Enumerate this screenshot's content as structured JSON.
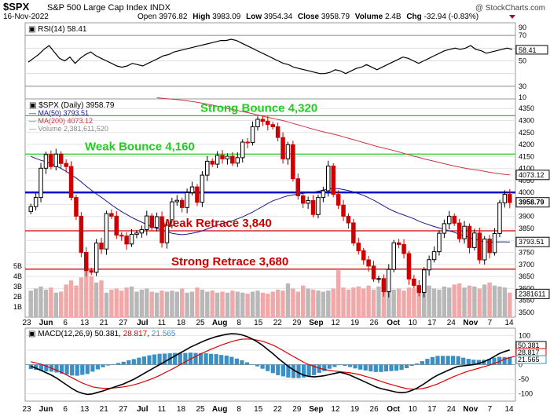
{
  "header": {
    "symbol": "$SPX",
    "name": "S&P 500 Large Cap Index",
    "exchange": "INDX",
    "watermark": "@ StockCharts.com",
    "date": "16-Nov-2022",
    "open_label": "Open",
    "open": "3976.82",
    "high_label": "High",
    "high": "3983.09",
    "low_label": "Low",
    "low": "3954.34",
    "close_label": "Close",
    "close": "3958.79",
    "volume_label": "Volume",
    "volume": "2.4B",
    "chg_label": "Chg",
    "chg": "-32.94 (-0.83%)"
  },
  "colors": {
    "up": "#000000",
    "down": "#cc0000",
    "ma50": "#1a1a8c",
    "ma200": "#cc3344",
    "support_blue": "#0000cc",
    "green_line": "#22cc22",
    "red_line": "#cc0000",
    "rsi": "#000000",
    "macd": "#000000",
    "signal": "#dd0000",
    "hist": "#3a8fc4"
  },
  "chart_data": [
    {
      "type": "line",
      "panel": "RSI",
      "label": "RSI(14)",
      "current": "58.41",
      "ylim": [
        20,
        80
      ],
      "ticks": [
        "90",
        "70",
        "50",
        "30",
        "10"
      ],
      "tick_values": [
        90,
        70,
        50,
        30,
        10
      ],
      "reference_levels": [
        70,
        30
      ],
      "values": [
        49,
        52,
        55,
        59,
        62,
        57,
        52,
        50,
        53,
        48,
        52,
        55,
        57,
        54,
        52,
        50,
        48,
        46,
        45,
        46,
        48,
        47,
        46,
        48,
        50,
        52,
        54,
        55,
        57,
        58,
        59,
        60,
        61,
        62,
        63,
        64,
        65,
        66,
        66,
        67,
        66,
        64,
        62,
        60,
        58,
        56,
        54,
        52,
        50,
        48,
        47,
        45,
        44,
        43,
        42,
        41,
        40,
        40,
        41,
        43,
        42,
        40,
        42,
        44,
        45,
        47,
        45,
        43,
        45,
        47,
        49,
        51,
        53,
        52,
        50,
        48,
        50,
        52,
        54,
        56,
        58,
        59,
        60,
        59,
        60,
        62,
        59,
        58,
        56,
        57,
        58,
        59,
        60,
        59
      ]
    },
    {
      "type": "candlestick",
      "panel": "Price",
      "series_labels": [
        {
          "name": "$SPX (Daily)",
          "value": "3958.79"
        },
        {
          "name": "MA(50)",
          "value": "3793.51"
        },
        {
          "name": "MA(200)",
          "value": "4073.12"
        },
        {
          "name": "Volume",
          "value": "2,381,611,520"
        }
      ],
      "x_labels": [
        "23",
        "Jun",
        "6",
        "13",
        "21",
        "27",
        "Jul",
        "11",
        "18",
        "25",
        "Aug",
        "8",
        "15",
        "22",
        "29",
        "Sep",
        "12",
        "19",
        "26",
        "Oct",
        "10",
        "17",
        "24",
        "Nov",
        "7",
        "14"
      ],
      "price_ticks": [
        "4350",
        "4300",
        "4250",
        "4200",
        "4150",
        "4100",
        "4050",
        "4000",
        "3950",
        "3900",
        "3850",
        "3800",
        "3750",
        "3700",
        "3650",
        "3600",
        "3550",
        "3500"
      ],
      "price_tick_values": [
        4350,
        4300,
        4250,
        4200,
        4150,
        4100,
        4050,
        4000,
        3950,
        3900,
        3850,
        3800,
        3750,
        3700,
        3650,
        3600,
        3550,
        3500
      ],
      "volume_ticks": [
        "5B",
        "4B",
        "3B",
        "2B",
        "1B"
      ],
      "volume_tick_values": [
        5,
        4,
        3,
        2,
        1
      ],
      "right_tags": [
        {
          "label": "4073.12",
          "value": 4073.12
        },
        {
          "label": "3958.79",
          "value": 3958.79
        },
        {
          "label": "3793.51",
          "value": 3793.51
        },
        {
          "label": "2381611",
          "value": 3577
        }
      ],
      "ylim": [
        3480,
        4390
      ],
      "levels": [
        {
          "name": "Strong Bounce 4,320",
          "value": 4320,
          "color": "#22cc22"
        },
        {
          "name": "Weak Bounce 4,160",
          "value": 4160,
          "color": "#22cc22"
        },
        {
          "name": "",
          "value": 4000,
          "color": "#0000cc"
        },
        {
          "name": "Weak Retrace 3,840",
          "value": 3840,
          "color": "#cc0000"
        },
        {
          "name": "Strong Retrace 3,680",
          "value": 3680,
          "color": "#cc0000"
        }
      ],
      "close": [
        3941,
        3979,
        4101,
        4158,
        4108,
        4160,
        4121,
        4108,
        3979,
        3901,
        3750,
        3674,
        3667,
        3789,
        3764,
        3912,
        3901,
        3822,
        3818,
        3785,
        3825,
        3831,
        3845,
        3902,
        3854,
        3899,
        3790,
        3863,
        3961,
        3967,
        3937,
        3999,
        4023,
        3959,
        4072,
        4130,
        4118,
        4155,
        4140,
        4151,
        4122,
        4145,
        4210,
        4208,
        4274,
        4305,
        4297,
        4283,
        4274,
        4229,
        4140,
        4199,
        4057,
        3986,
        3955,
        3966,
        3908,
        3979,
        4007,
        4110,
        3992,
        3947,
        3901,
        3873,
        3789,
        3757,
        3719,
        3693,
        3639,
        3641,
        3586,
        3679,
        3790,
        3783,
        3745,
        3639,
        3612,
        3583,
        3677,
        3720,
        3753,
        3830,
        3870,
        3901,
        3872,
        3807,
        3859,
        3770,
        3831,
        3719,
        3806,
        3749,
        3829,
        3957,
        3992,
        3958
      ],
      "ma50": [
        4150,
        4142,
        4134,
        4128,
        4120,
        4110,
        4100,
        4088,
        4074,
        4060,
        4044,
        4026,
        4010,
        3994,
        3980,
        3964,
        3948,
        3934,
        3920,
        3908,
        3896,
        3886,
        3876,
        3866,
        3858,
        3850,
        3843,
        3836,
        3830,
        3826,
        3824,
        3826,
        3830,
        3834,
        3840,
        3848,
        3856,
        3864,
        3870,
        3876,
        3882,
        3890,
        3898,
        3908,
        3918,
        3930,
        3942,
        3954,
        3965,
        3972,
        3980,
        3986,
        3990,
        3993,
        3996,
        3999,
        4001,
        4005,
        4010,
        4014,
        4016,
        4016,
        4012,
        4008,
        4002,
        3995,
        3988,
        3978,
        3968,
        3956,
        3944,
        3932,
        3922,
        3913,
        3906,
        3898,
        3890,
        3880,
        3872,
        3865,
        3858,
        3852,
        3846,
        3840,
        3834,
        3826,
        3819,
        3812,
        3806,
        3799,
        3794,
        3793,
        3793,
        3794,
        3794,
        3793.5
      ],
      "ma200": [
        4395,
        4393,
        4391,
        4389,
        4387,
        4385,
        4382,
        4379,
        4376,
        4372,
        4368,
        4364,
        4360,
        4355,
        4350,
        4346,
        4342,
        4337,
        4333,
        4328,
        4323,
        4318,
        4313,
        4309,
        4304,
        4300,
        4294,
        4288,
        4282,
        4276,
        4270,
        4264,
        4258,
        4253,
        4248,
        4243,
        4238,
        4232,
        4226,
        4220,
        4214,
        4208,
        4202,
        4196,
        4190,
        4185,
        4180,
        4175,
        4169,
        4163,
        4157,
        4151,
        4146,
        4140,
        4135,
        4130,
        4125,
        4120,
        4115,
        4110,
        4106,
        4102,
        4098,
        4095,
        4092,
        4088,
        4084,
        4081,
        4078,
        4075,
        4073.12
      ],
      "volume": [
        2.6,
        2.8,
        3.0,
        2.7,
        2.9,
        2.4,
        2.5,
        3.2,
        3.6,
        3.1,
        3.9,
        5.0,
        4.0,
        3.4,
        3.6,
        2.4,
        2.7,
        2.8,
        2.6,
        2.9,
        3.0,
        2.5,
        2.7,
        2.8,
        2.5,
        2.4,
        2.6,
        2.5,
        2.6,
        2.5,
        2.8,
        2.4,
        2.5,
        2.9,
        2.7,
        2.5,
        2.6,
        2.4,
        2.5,
        2.4,
        2.6,
        2.5,
        2.4,
        2.3,
        2.5,
        2.6,
        2.4,
        2.3,
        2.5,
        2.7,
        2.6,
        3.3,
        2.8,
        2.5,
        3.1,
        2.8,
        2.7,
        2.6,
        2.5,
        2.6,
        2.8,
        4.6,
        2.9,
        2.7,
        2.9,
        3.0,
        2.8,
        3.1,
        2.7,
        3.0,
        3.4,
        2.9,
        2.7,
        2.8,
        2.6,
        2.9,
        2.8,
        2.7,
        2.9,
        3.1,
        2.8,
        2.7,
        3.0,
        2.9,
        3.2,
        3.3,
        2.9,
        3.1,
        3.0,
        2.8,
        3.2,
        3.4,
        3.1,
        3.0,
        2.9,
        2.4
      ]
    },
    {
      "type": "line",
      "panel": "MACD",
      "label": "MACD(12,26,9)",
      "macd_value": "50.381",
      "signal_value": "28.817",
      "hist_value": "21.565",
      "ylim": [
        -125,
        125
      ],
      "ticks": [
        "100",
        "50",
        "0",
        "-50",
        "-100"
      ],
      "tick_values": [
        100,
        50,
        0,
        -50,
        -100
      ],
      "right_tags": [
        {
          "label": "50.381",
          "value": 50.381
        },
        {
          "label": "28.817",
          "value": 28.817
        },
        {
          "label": "21.565",
          "value": 21.565
        }
      ],
      "macd": [
        -5,
        -12,
        -20,
        -28,
        -36,
        -46,
        -58,
        -70,
        -82,
        -92,
        -98,
        -102,
        -100,
        -95,
        -90,
        -84,
        -78,
        -72,
        -66,
        -58,
        -50,
        -40,
        -30,
        -20,
        -10,
        0,
        10,
        20,
        30,
        40,
        50,
        60,
        68,
        76,
        84,
        90,
        96,
        100,
        104,
        106,
        105,
        102,
        96,
        88,
        78,
        66,
        52,
        38,
        22,
        8,
        -6,
        -18,
        -28,
        -36,
        -40,
        -42,
        -40,
        -38,
        -34,
        -30,
        -26,
        -30,
        -36,
        -44,
        -52,
        -60,
        -68,
        -76,
        -82,
        -86,
        -90,
        -94,
        -96,
        -94,
        -88,
        -80,
        -70,
        -58,
        -46,
        -36,
        -28,
        -20,
        -12,
        -6,
        -4,
        -2,
        0,
        4,
        10,
        18,
        28,
        38,
        45,
        50.381
      ],
      "signal": [
        10,
        6,
        1,
        -5,
        -12,
        -19,
        -27,
        -36,
        -45,
        -54,
        -63,
        -70,
        -76,
        -79,
        -81,
        -81,
        -80,
        -78,
        -76,
        -73,
        -69,
        -64,
        -58,
        -52,
        -45,
        -37,
        -28,
        -19,
        -10,
        0,
        10,
        19,
        28,
        37,
        45,
        53,
        60,
        67,
        73,
        79,
        84,
        87,
        88,
        87,
        84,
        80,
        74,
        67,
        58,
        48,
        38,
        28,
        18,
        8,
        0,
        -6,
        -12,
        -16,
        -20,
        -22,
        -24,
        -26,
        -28,
        -31,
        -35,
        -40,
        -45,
        -51,
        -57,
        -63,
        -68,
        -73,
        -78,
        -82,
        -84,
        -84,
        -82,
        -78,
        -72,
        -66,
        -58,
        -50,
        -42,
        -35,
        -28,
        -22,
        -17,
        -12,
        -7,
        -2,
        4,
        11,
        19,
        24,
        28.817
      ]
    }
  ]
}
